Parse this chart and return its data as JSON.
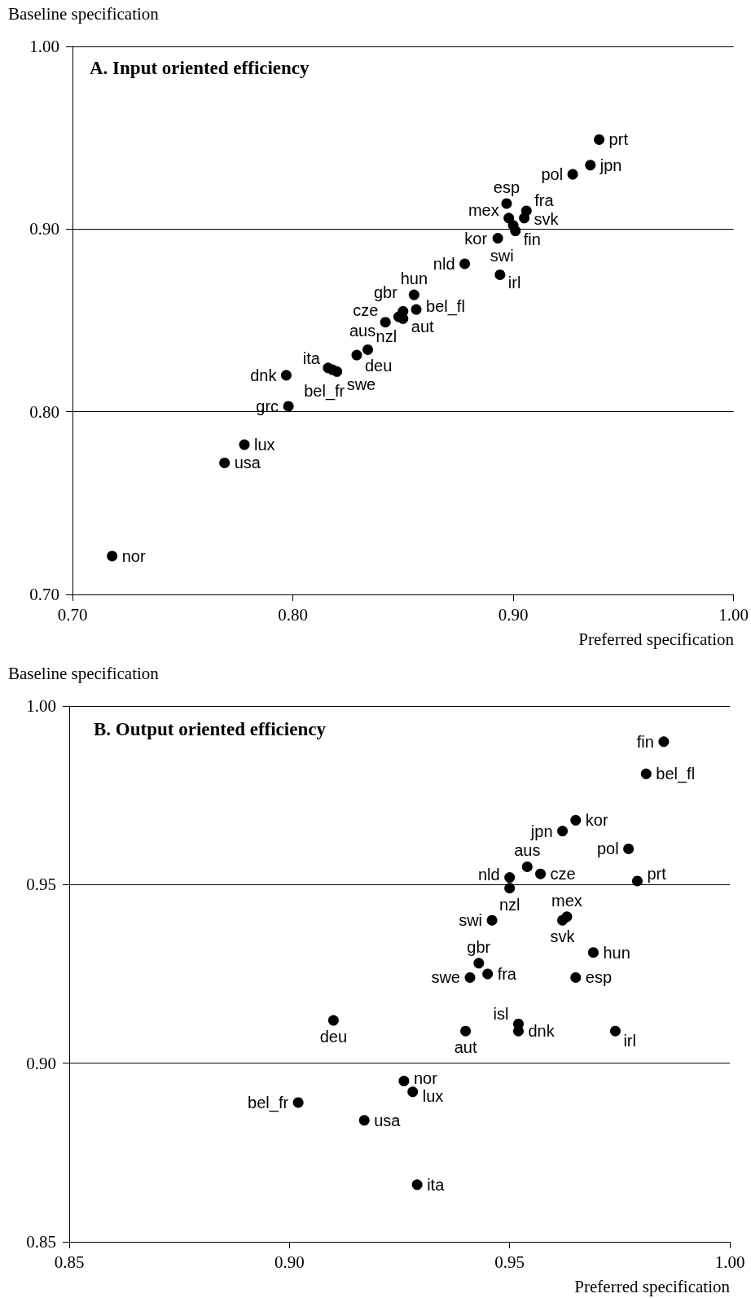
{
  "chart_data": [
    {
      "type": "scatter",
      "title": "A. Input oriented efficiency",
      "xlabel": "Preferred specification",
      "ylabel": "Baseline specification",
      "color": "#000000",
      "marker": "circle",
      "grid": "y",
      "x": [
        0.939,
        0.935,
        0.927,
        0.897,
        0.906,
        0.898,
        0.905,
        0.9,
        0.901,
        0.893,
        0.878,
        0.894,
        0.855,
        0.856,
        0.85,
        0.848,
        0.85,
        0.842,
        0.834,
        0.829,
        0.816,
        0.818,
        0.82,
        0.797,
        0.798,
        0.778,
        0.769,
        0.718
      ],
      "values": [
        0.949,
        0.935,
        0.93,
        0.914,
        0.91,
        0.906,
        0.906,
        0.902,
        0.899,
        0.895,
        0.881,
        0.875,
        0.864,
        0.856,
        0.855,
        0.852,
        0.851,
        0.849,
        0.834,
        0.831,
        0.824,
        0.823,
        0.822,
        0.82,
        0.803,
        0.782,
        0.772,
        0.721
      ],
      "value_labels": [
        "prt",
        "jpn",
        "pol",
        "esp",
        "fra",
        "mex",
        "svk",
        "kor",
        "fin",
        "swi",
        "nld",
        "irl",
        "hun",
        "bel_fl",
        "gbr",
        "cze",
        "aut",
        "aus",
        "nzl",
        "deu",
        "ita",
        "bel_fr",
        "swe",
        "dnk",
        "grc",
        "lux",
        "usa",
        "nor"
      ],
      "xlim": [
        0.7,
        1.0
      ],
      "ylim": [
        0.7,
        1.0
      ],
      "xticks": [
        {
          "value": 0.7,
          "label": "0.70"
        },
        {
          "value": 0.8,
          "label": "0.80"
        },
        {
          "value": 0.9,
          "label": "0.90"
        },
        {
          "value": 1.0,
          "label": "1.00"
        }
      ],
      "yticks": [
        {
          "value": 0.7,
          "label": "0.70"
        },
        {
          "value": 0.8,
          "label": "0.80"
        },
        {
          "value": 0.9,
          "label": "0.90"
        },
        {
          "value": 1.0,
          "label": "1.00"
        }
      ]
    },
    {
      "type": "scatter",
      "title": "B. Output oriented efficiency",
      "xlabel": "Preferred specification",
      "ylabel": "Baseline specification",
      "color": "#000000",
      "marker": "circle",
      "grid": "y",
      "x": [
        0.985,
        0.981,
        0.965,
        0.962,
        0.977,
        0.954,
        0.957,
        0.95,
        0.95,
        0.979,
        0.946,
        0.963,
        0.962,
        0.969,
        0.943,
        0.941,
        0.945,
        0.965,
        0.91,
        0.94,
        0.952,
        0.952,
        0.974,
        0.926,
        0.928,
        0.902,
        0.917,
        0.929
      ],
      "values": [
        0.99,
        0.981,
        0.968,
        0.965,
        0.96,
        0.955,
        0.953,
        0.952,
        0.949,
        0.951,
        0.94,
        0.941,
        0.94,
        0.931,
        0.928,
        0.924,
        0.925,
        0.924,
        0.912,
        0.909,
        0.911,
        0.909,
        0.909,
        0.895,
        0.892,
        0.889,
        0.884,
        0.866
      ],
      "value_labels": [
        "fin",
        "bel_fl",
        "kor",
        "jpn",
        "pol",
        "aus",
        "cze",
        "nld",
        "nzl",
        "prt",
        "swi",
        "mex",
        "svk",
        "hun",
        "gbr",
        "swe",
        "fra",
        "esp",
        "deu",
        "aut",
        "isl",
        "dnk",
        "irl",
        "nor",
        "lux",
        "bel_fr",
        "usa",
        "ita"
      ],
      "xlim": [
        0.85,
        1.0
      ],
      "ylim": [
        0.85,
        1.0
      ],
      "xticks": [
        {
          "value": 0.85,
          "label": "0.85"
        },
        {
          "value": 0.9,
          "label": "0.90"
        },
        {
          "value": 0.95,
          "label": "0.95"
        },
        {
          "value": 1.0,
          "label": "1.00"
        }
      ],
      "yticks": [
        {
          "value": 0.85,
          "label": "0.85"
        },
        {
          "value": 0.9,
          "label": "0.90"
        },
        {
          "value": 0.95,
          "label": "0.95"
        },
        {
          "value": 1.0,
          "label": "1.00"
        }
      ]
    }
  ]
}
